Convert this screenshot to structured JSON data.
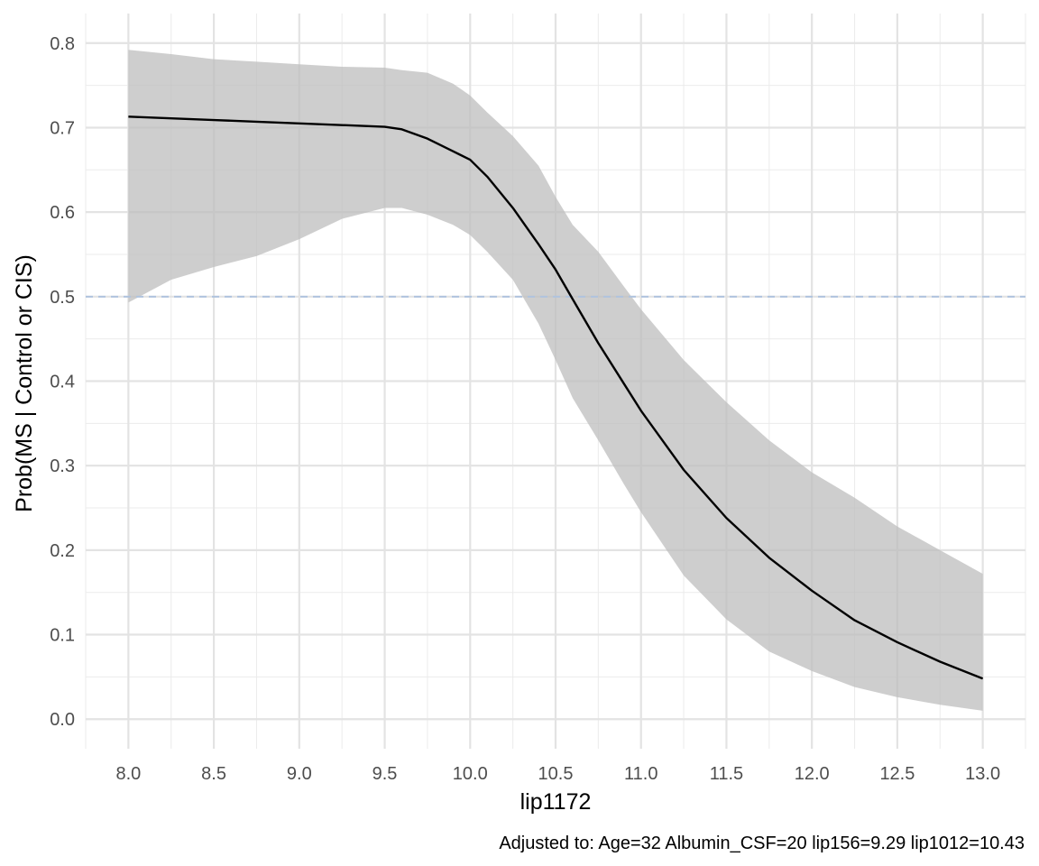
{
  "chart_data": {
    "type": "line",
    "title": "",
    "xlabel": "lip1172",
    "ylabel": "Prob(MS | Control or CIS)",
    "caption": "Adjusted to: Age=32 Albumin_CSF=20 lip156=9.29 lip1012=10.43",
    "xlim": [
      7.75,
      13.25
    ],
    "ylim": [
      -0.035,
      0.835
    ],
    "x_ticks": [
      8.0,
      8.5,
      9.0,
      9.5,
      10.0,
      10.5,
      11.0,
      11.5,
      12.0,
      12.5,
      13.0
    ],
    "x_tick_labels": [
      "8.0",
      "8.5",
      "9.0",
      "9.5",
      "10.0",
      "10.5",
      "11.0",
      "11.5",
      "12.0",
      "12.5",
      "13.0"
    ],
    "y_ticks": [
      0.0,
      0.1,
      0.2,
      0.3,
      0.4,
      0.5,
      0.6,
      0.7,
      0.8
    ],
    "y_tick_labels": [
      "0.0",
      "0.1",
      "0.2",
      "0.3",
      "0.4",
      "0.5",
      "0.6",
      "0.7",
      "0.8"
    ],
    "grid": true,
    "legend": "none",
    "reference_line": {
      "y": 0.5,
      "style": "dashed",
      "color": "#b0c4de"
    },
    "ribbon_color": "#bdbdbd",
    "line_color": "#000000",
    "series": [
      {
        "x": [
          8.0,
          8.25,
          8.5,
          8.75,
          9.0,
          9.25,
          9.5,
          9.6,
          9.75,
          9.9,
          10.0,
          10.1,
          10.25,
          10.4,
          10.5,
          10.6,
          10.75,
          10.9,
          11.0,
          11.25,
          11.5,
          11.75,
          12.0,
          12.25,
          12.5,
          12.75,
          13.0
        ],
        "y": [
          0.713,
          0.711,
          0.709,
          0.707,
          0.705,
          0.703,
          0.701,
          0.698,
          0.687,
          0.672,
          0.662,
          0.642,
          0.605,
          0.562,
          0.532,
          0.497,
          0.445,
          0.397,
          0.365,
          0.295,
          0.238,
          0.191,
          0.152,
          0.117,
          0.091,
          0.068,
          0.048
        ],
        "lower": [
          0.493,
          0.52,
          0.535,
          0.548,
          0.568,
          0.592,
          0.605,
          0.605,
          0.597,
          0.585,
          0.573,
          0.553,
          0.52,
          0.468,
          0.425,
          0.38,
          0.33,
          0.278,
          0.245,
          0.17,
          0.118,
          0.08,
          0.057,
          0.038,
          0.026,
          0.017,
          0.01
        ],
        "upper": [
          0.792,
          0.787,
          0.781,
          0.778,
          0.775,
          0.772,
          0.771,
          0.768,
          0.765,
          0.752,
          0.738,
          0.718,
          0.69,
          0.655,
          0.618,
          0.585,
          0.553,
          0.512,
          0.485,
          0.425,
          0.375,
          0.33,
          0.292,
          0.262,
          0.228,
          0.2,
          0.172
        ]
      }
    ]
  }
}
